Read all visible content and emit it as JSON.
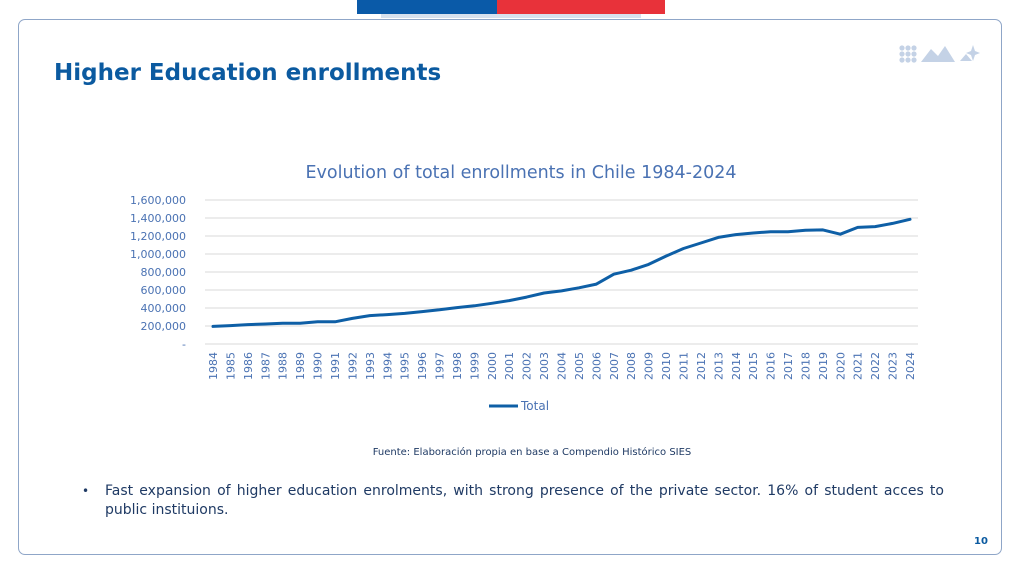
{
  "slide": {
    "title": "Higher Education enrollments",
    "source": "Fuente: Elaboración propia en base a Compendio Histórico SIES",
    "bullets": [
      "Fast expansion of higher education enrolments, with strong presence of the private sector. 16% of student acces to public instituions."
    ],
    "page_number": "10"
  },
  "colors": {
    "brand_blue": "#0a5aa8",
    "brand_red": "#e8323a",
    "title": "#0b5aa0",
    "series_line": "#0e5fa6",
    "axis_text": "#4a72b3"
  },
  "icons": {
    "logo": "dots-mountains-star-logo-icon"
  },
  "chart_data": {
    "type": "line",
    "title": "Evolution of total enrollments in Chile 1984-2024",
    "xlabel": "",
    "ylabel": "",
    "ylim": [
      0,
      1600000
    ],
    "y_tick_values": [
      0,
      200000,
      400000,
      600000,
      800000,
      1000000,
      1200000,
      1400000,
      1600000
    ],
    "y_tick_labels": [
      "-",
      "200,000",
      "400,000",
      "600,000",
      "800,000",
      "1,000,000",
      "1,200,000",
      "1,400,000",
      "1,600,000"
    ],
    "grid": true,
    "legend_position": "bottom",
    "categories": [
      "1984",
      "1985",
      "1986",
      "1987",
      "1988",
      "1989",
      "1990",
      "1991",
      "1992",
      "1993",
      "1994",
      "1995",
      "1996",
      "1997",
      "1998",
      "1999",
      "2000",
      "2001",
      "2002",
      "2003",
      "2004",
      "2005",
      "2006",
      "2007",
      "2008",
      "2009",
      "2010",
      "2011",
      "2012",
      "2013",
      "2014",
      "2015",
      "2016",
      "2017",
      "2018",
      "2019",
      "2020",
      "2021",
      "2022",
      "2023",
      "2024"
    ],
    "series": [
      {
        "name": "Total",
        "values": [
          195000,
          205000,
          215000,
          222000,
          230000,
          230000,
          247000,
          247000,
          285000,
          315000,
          327000,
          340000,
          360000,
          380000,
          405000,
          425000,
          452000,
          482000,
          521000,
          567000,
          590000,
          625000,
          666000,
          776000,
          820000,
          885000,
          977000,
          1061000,
          1122000,
          1185000,
          1215000,
          1233000,
          1248000,
          1248000,
          1263000,
          1268000,
          1220000,
          1295000,
          1305000,
          1340000,
          1386000
        ]
      }
    ]
  }
}
